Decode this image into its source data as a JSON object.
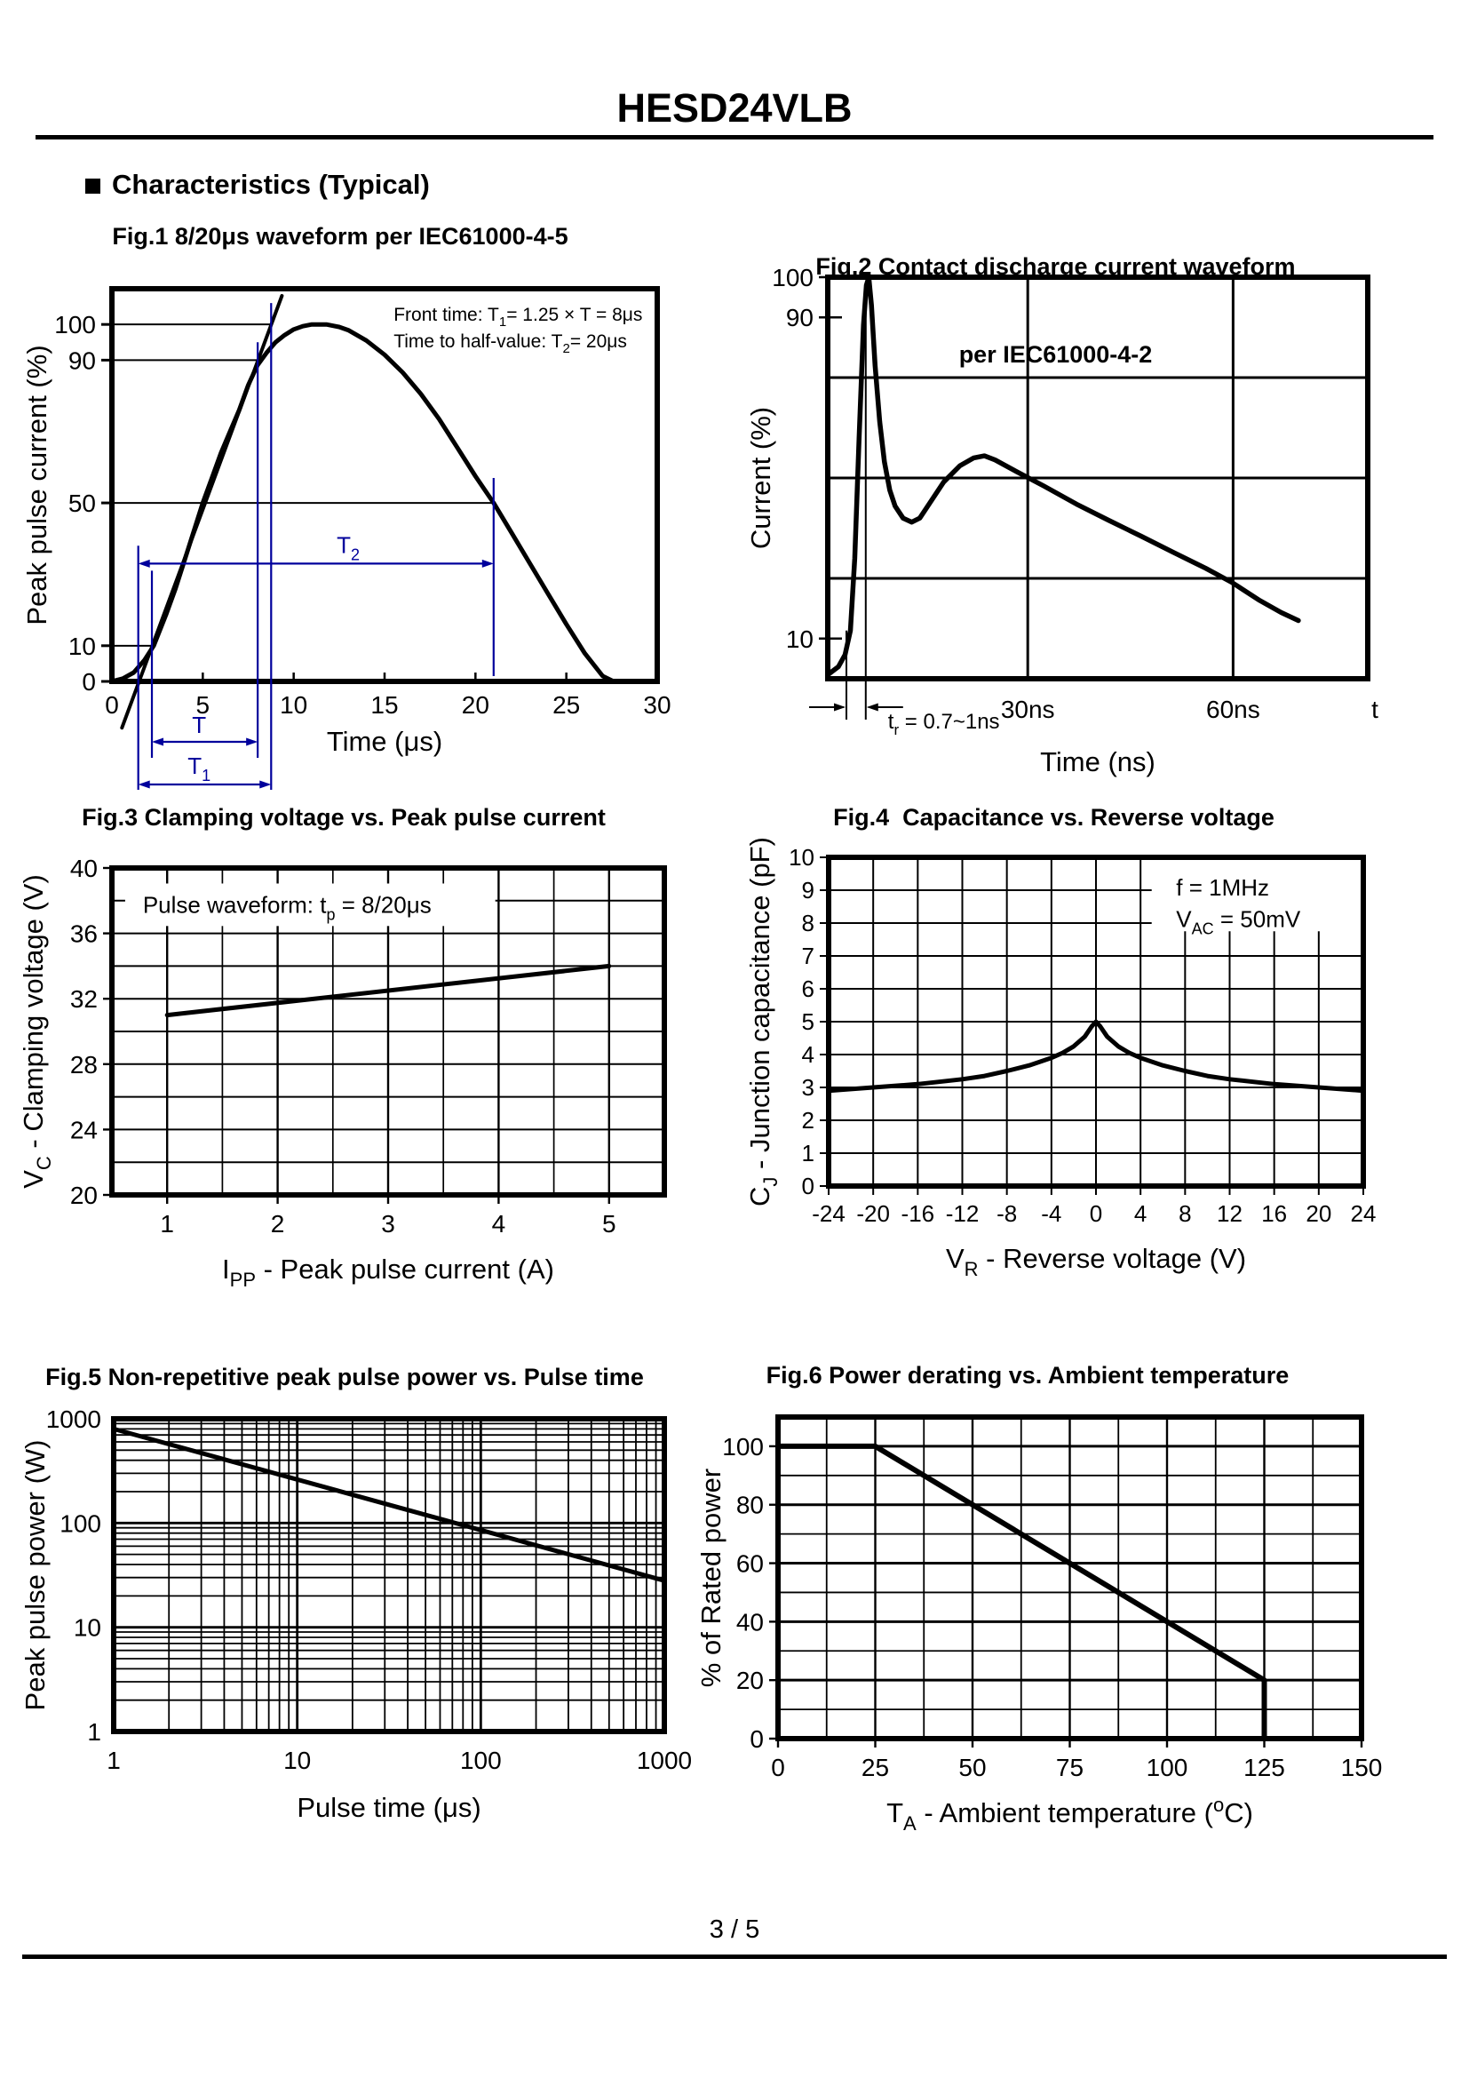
{
  "page": {
    "product_title": "HESD24VLB",
    "section_title": "Characteristics (Typical)",
    "page_number": "3 / 5"
  },
  "chart_data": [
    {
      "type": "line",
      "title": "Fig.1 8/20μs waveform per IEC61000-4-5",
      "xlabel": "Time (μs)",
      "ylabel": "Peak pulse current (%)",
      "xlim": [
        0,
        30
      ],
      "ylim": [
        0,
        110
      ],
      "xticks": [
        0,
        5,
        10,
        15,
        20,
        25,
        30
      ],
      "yticks": [
        0,
        10,
        50,
        90,
        100
      ],
      "grid": "off",
      "ref_lines": [
        {
          "y": 100,
          "x2": 8.76
        },
        {
          "y": 90,
          "x2": 8.02
        },
        {
          "y": 50,
          "x2": 21
        },
        {
          "y": 10,
          "x2": 2.2
        }
      ],
      "markers": {
        "virtual_origin": 1.45,
        "p10": 2.2,
        "p90": 8.02,
        "p100": 8.76,
        "half_time": 21,
        "t2_arrow_y": 33
      },
      "annotations": {
        "front_time": [
          {
            "t": "Front time: T"
          },
          {
            "t": "1",
            "sub": true
          },
          {
            "t": "= 1.25 × T = 8μs"
          }
        ],
        "half_value": [
          {
            "t": "Time to half-value: T"
          },
          {
            "t": "2",
            "sub": true
          },
          {
            "t": "= 20μs"
          }
        ],
        "T_label": "T",
        "T1_label": [
          {
            "t": "T"
          },
          {
            "t": "1",
            "sub": true
          }
        ],
        "T2_label": [
          {
            "t": "T"
          },
          {
            "t": "2",
            "sub": true
          }
        ],
        "accent_color": "#00009c"
      },
      "series": [
        {
          "name": "surge waveform",
          "width": 5,
          "points": [
            [
              0,
              0
            ],
            [
              0.6,
              0.8
            ],
            [
              1.2,
              2.5
            ],
            [
              1.8,
              6
            ],
            [
              2.3,
              10
            ],
            [
              3,
              19
            ],
            [
              3.5,
              26
            ],
            [
              4,
              34
            ],
            [
              4.5,
              42
            ],
            [
              5,
              50
            ],
            [
              5.5,
              57
            ],
            [
              6,
              64
            ],
            [
              6.5,
              70
            ],
            [
              7,
              76
            ],
            [
              7.5,
              83
            ],
            [
              8,
              88.5
            ],
            [
              8.5,
              92
            ],
            [
              9,
              95
            ],
            [
              9.5,
              97
            ],
            [
              10,
              98.6
            ],
            [
              10.5,
              99.5
            ],
            [
              11,
              100
            ],
            [
              11.8,
              100
            ],
            [
              12.5,
              99.3
            ],
            [
              13,
              98.4
            ],
            [
              14,
              95.5
            ],
            [
              15,
              91.5
            ],
            [
              16,
              86.5
            ],
            [
              17,
              80.5
            ],
            [
              18,
              73.5
            ],
            [
              19,
              65.5
            ],
            [
              20,
              57.5
            ],
            [
              21,
              50
            ],
            [
              22,
              41.5
            ],
            [
              23,
              33
            ],
            [
              24,
              24.5
            ],
            [
              25,
              16
            ],
            [
              26,
              8
            ],
            [
              27,
              1.5
            ],
            [
              27.6,
              0
            ],
            [
              28.3,
              0
            ]
          ]
        },
        {
          "name": "front tangent",
          "width": 4,
          "points": [
            [
              0.55,
              -13
            ],
            [
              9.35,
              108
            ]
          ]
        }
      ]
    },
    {
      "type": "line",
      "title": "Fig.2 Contact discharge current waveform",
      "title2": "per IEC61000-4-2",
      "xlabel": "Time (ns)",
      "ylabel": "Current (%)",
      "xlim": [
        0,
        81
      ],
      "ylim": [
        0,
        100
      ],
      "yticks": [
        10,
        90,
        100
      ],
      "ygrid": [
        25,
        50,
        75
      ],
      "xticks": [
        {
          "x": 30,
          "label": "30ns"
        },
        {
          "x": 60.8,
          "label": "60ns"
        },
        {
          "x": 81,
          "label": "t"
        }
      ],
      "rise_markers": [
        2.8,
        5.7
      ],
      "rise_label": [
        {
          "t": "t"
        },
        {
          "t": "r",
          "sub": true
        },
        {
          "t": " = 0.7~1ns"
        }
      ],
      "points": [
        [
          0,
          1
        ],
        [
          1.6,
          3
        ],
        [
          2.6,
          6
        ],
        [
          3.4,
          12
        ],
        [
          4.05,
          30
        ],
        [
          4.7,
          60
        ],
        [
          5.35,
          88
        ],
        [
          5.8,
          98
        ],
        [
          6.15,
          100
        ],
        [
          6.55,
          93
        ],
        [
          7.1,
          78
        ],
        [
          7.8,
          64
        ],
        [
          8.5,
          54
        ],
        [
          9.3,
          47
        ],
        [
          10.1,
          43
        ],
        [
          11.3,
          40
        ],
        [
          12.6,
          39
        ],
        [
          13.8,
          40
        ],
        [
          15.4,
          44
        ],
        [
          17.4,
          49
        ],
        [
          19.8,
          53
        ],
        [
          21.9,
          55
        ],
        [
          23.5,
          55.5
        ],
        [
          25.1,
          54.5
        ],
        [
          28.4,
          51.5
        ],
        [
          32.4,
          48
        ],
        [
          37.3,
          43.5
        ],
        [
          42.1,
          39.5
        ],
        [
          47,
          35.5
        ],
        [
          51.8,
          31.5
        ],
        [
          56.7,
          27.5
        ],
        [
          60.6,
          24
        ],
        [
          64.8,
          19.5
        ],
        [
          68,
          16.5
        ],
        [
          70.6,
          14.5
        ]
      ]
    },
    {
      "type": "line",
      "title": "Fig.3 Clamping voltage vs. Peak pulse current",
      "xlabel_parts": [
        {
          "t": "I"
        },
        {
          "t": "PP",
          "sub": true
        },
        {
          "t": " - Peak pulse current (A)"
        }
      ],
      "ylabel_parts": [
        {
          "t": "V"
        },
        {
          "t": "C",
          "sub": true
        },
        {
          "t": " - Clamping voltage (V)"
        }
      ],
      "xlim": [
        0.5,
        5.5
      ],
      "ylim": [
        20,
        40
      ],
      "xticks": [
        1,
        2,
        3,
        4,
        5
      ],
      "yticks": [
        20,
        24,
        28,
        32,
        36,
        40
      ],
      "xgrid_step": 0.5,
      "ygrid_step": 2,
      "annotation": [
        {
          "t": "Pulse waveform: t"
        },
        {
          "t": "p",
          "sub": true
        },
        {
          "t": " = 8/20μs"
        }
      ],
      "points": [
        [
          1,
          31
        ],
        [
          5,
          34
        ]
      ]
    },
    {
      "type": "line",
      "title": "Fig.4  Capacitance vs. Reverse voltage",
      "xlabel_parts": [
        {
          "t": "V"
        },
        {
          "t": "R",
          "sub": true
        },
        {
          "t": " - Reverse voltage (V)"
        }
      ],
      "ylabel_parts": [
        {
          "t": "C"
        },
        {
          "t": "J",
          "sub": true
        },
        {
          "t": " - Junction capacitance (pF)"
        }
      ],
      "xlim": [
        -24,
        24
      ],
      "ylim": [
        0,
        10
      ],
      "xticks": [
        -24,
        -20,
        -16,
        -12,
        -8,
        -4,
        0,
        4,
        8,
        12,
        16,
        20,
        24
      ],
      "yticks": [
        0,
        1,
        2,
        3,
        4,
        5,
        6,
        7,
        8,
        9,
        10
      ],
      "xgrid_step": 4,
      "ygrid_step": 1,
      "annotation1": "f = 1MHz",
      "annotation2": [
        {
          "t": "V"
        },
        {
          "t": "AC",
          "sub": true
        },
        {
          "t": " = 50mV"
        }
      ],
      "points": [
        [
          -24,
          2.9
        ],
        [
          -20,
          3.0
        ],
        [
          -16,
          3.1
        ],
        [
          -12,
          3.25
        ],
        [
          -10,
          3.35
        ],
        [
          -8,
          3.5
        ],
        [
          -6,
          3.67
        ],
        [
          -4,
          3.9
        ],
        [
          -3,
          4.05
        ],
        [
          -2,
          4.25
        ],
        [
          -1,
          4.55
        ],
        [
          -0.4,
          4.85
        ],
        [
          0,
          5.0
        ],
        [
          0.4,
          4.85
        ],
        [
          1,
          4.55
        ],
        [
          2,
          4.25
        ],
        [
          3,
          4.05
        ],
        [
          4,
          3.9
        ],
        [
          6,
          3.67
        ],
        [
          8,
          3.5
        ],
        [
          10,
          3.35
        ],
        [
          12,
          3.25
        ],
        [
          16,
          3.1
        ],
        [
          20,
          3.0
        ],
        [
          24,
          2.9
        ]
      ]
    },
    {
      "type": "line",
      "title": "Fig.5 Non-repetitive peak pulse power vs. Pulse time",
      "xlabel": "Pulse time (μs)",
      "ylabel": "Peak pulse power (W)",
      "xscale": "log",
      "yscale": "log",
      "xlim": [
        1,
        1000
      ],
      "ylim": [
        1,
        1000
      ],
      "xticks": [
        1,
        10,
        100,
        1000
      ],
      "yticks": [
        1,
        10,
        100,
        1000
      ],
      "points": [
        [
          1,
          800
        ],
        [
          1000,
          28
        ]
      ]
    },
    {
      "type": "line",
      "title": "Fig.6 Power derating vs. Ambient temperature",
      "xlabel_parts": [
        {
          "t": "T"
        },
        {
          "t": "A",
          "sub": true
        },
        {
          "t": " - Ambient temperature ("
        },
        {
          "t": "o",
          "sup": true
        },
        {
          "t": "C)"
        }
      ],
      "ylabel": "% of Rated power",
      "xlim": [
        0,
        150
      ],
      "ylim": [
        0,
        110
      ],
      "xticks": [
        0,
        25,
        50,
        75,
        100,
        125,
        150
      ],
      "yticks": [
        0,
        20,
        40,
        60,
        80,
        100
      ],
      "xgrid_minor": 12.5,
      "ygrid_minor": 10,
      "points": [
        [
          0,
          100
        ],
        [
          25,
          100
        ],
        [
          125,
          20
        ],
        [
          125,
          0
        ]
      ]
    }
  ]
}
